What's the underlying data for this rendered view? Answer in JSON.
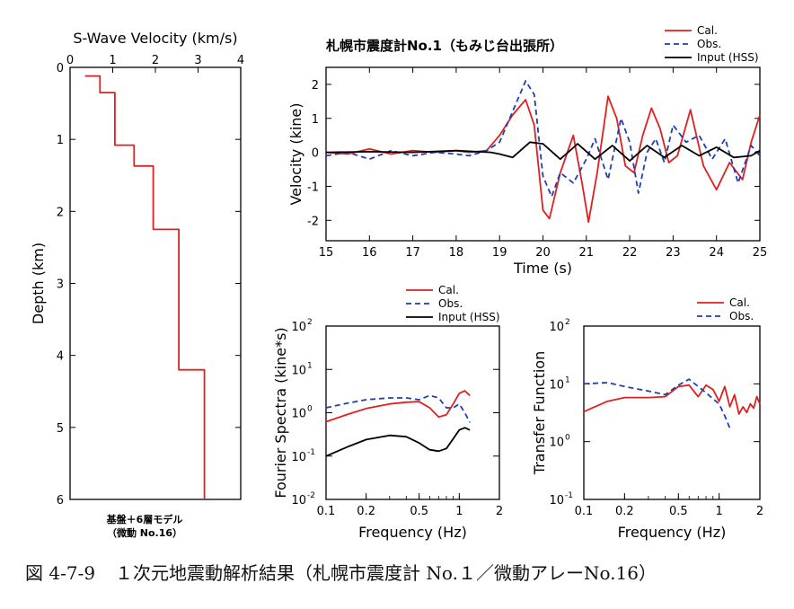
{
  "caption": {
    "number": "図 4-7-9",
    "text": "１次元地震動解析結果（札幌市震度計 No.１／微動アレーNo.16）"
  },
  "chart_data": [
    {
      "id": "vs",
      "type": "line",
      "title": "S-Wave Velocity (km/s)",
      "ylabel": "Depth (km)",
      "xlim": [
        0,
        4
      ],
      "ylim": [
        0,
        6
      ],
      "x_ticks": [
        "0",
        "1",
        "2",
        "3",
        "4"
      ],
      "y_ticks": [
        "0",
        "1",
        "2",
        "3",
        "4",
        "5",
        "6"
      ],
      "note_line1": "基盤＋6層モデル",
      "note_line2": "（微動 No.16）",
      "color": "#e02020",
      "series": [
        {
          "x": [
            0.35,
            0.7,
            0.7,
            1.05,
            1.05,
            1.5,
            1.5,
            1.95,
            1.95,
            2.55,
            2.55,
            3.15,
            3.15
          ],
          "y": [
            0.12,
            0.12,
            0.35,
            0.35,
            1.08,
            1.08,
            1.37,
            1.37,
            2.25,
            2.25,
            4.2,
            4.2,
            6.0
          ]
        }
      ]
    },
    {
      "id": "velocity",
      "type": "line",
      "title": "札幌市震度計No.1（もみじ台出張所）",
      "xlabel": "Time (s)",
      "ylabel": "Velocity (kine)",
      "xlim": [
        15,
        25
      ],
      "ylim": [
        -2.6,
        2.5
      ],
      "x_ticks": [
        "15",
        "16",
        "17",
        "18",
        "19",
        "20",
        "21",
        "22",
        "23",
        "24",
        "25"
      ],
      "y_ticks": [
        "2",
        "1",
        "0",
        "-1",
        "-2"
      ],
      "legend": "top-right",
      "series": [
        {
          "name": "Cal.",
          "color": "#e02020",
          "dash": "solid",
          "x": [
            15,
            15.5,
            16,
            16.5,
            17,
            17.5,
            18,
            18.3,
            18.7,
            19,
            19.3,
            19.6,
            19.8,
            20,
            20.15,
            20.4,
            20.7,
            20.9,
            21.05,
            21.25,
            21.5,
            21.7,
            21.9,
            22.1,
            22.3,
            22.5,
            22.7,
            22.9,
            23.1,
            23.4,
            23.7,
            24,
            24.3,
            24.6,
            24.8,
            25
          ],
          "y": [
            0,
            -0.05,
            0.1,
            -0.05,
            0.05,
            0,
            0.05,
            0,
            0.05,
            0.5,
            1.1,
            1.55,
            0.8,
            -1.7,
            -1.95,
            -0.6,
            0.5,
            -0.9,
            -2.05,
            -0.6,
            1.65,
            1.0,
            -0.4,
            -0.6,
            0.5,
            1.3,
            0.7,
            -0.3,
            -0.1,
            1.25,
            -0.4,
            -1.1,
            -0.3,
            -0.8,
            0.3,
            1.1
          ]
        },
        {
          "name": "Obs.",
          "color": "#1f3fb0",
          "dash": "dashed",
          "x": [
            15,
            15.5,
            16,
            16.5,
            17,
            17.5,
            18,
            18.3,
            18.7,
            19,
            19.3,
            19.6,
            19.8,
            20,
            20.2,
            20.4,
            20.7,
            21,
            21.2,
            21.5,
            21.8,
            22,
            22.2,
            22.4,
            22.6,
            22.8,
            23,
            23.3,
            23.6,
            23.9,
            24.2,
            24.5,
            24.8,
            25
          ],
          "y": [
            -0.1,
            0,
            -0.2,
            0.05,
            -0.1,
            0,
            -0.05,
            -0.1,
            0.05,
            0.3,
            1.2,
            2.1,
            1.7,
            -0.7,
            -1.3,
            -0.6,
            -0.9,
            -0.2,
            0.4,
            -0.8,
            1.0,
            0.3,
            -1.2,
            0,
            0.4,
            -0.3,
            0.8,
            0.3,
            0.5,
            -0.2,
            0.4,
            -0.9,
            0.2,
            -0.1
          ]
        },
        {
          "name": "Input (HSS)",
          "color": "#000000",
          "dash": "solid",
          "x": [
            15,
            16,
            17,
            18,
            18.8,
            19,
            19.3,
            19.7,
            20,
            20.4,
            20.8,
            21.2,
            21.6,
            22,
            22.4,
            22.8,
            23.2,
            23.6,
            24,
            24.4,
            24.8,
            25
          ],
          "y": [
            0,
            0.02,
            0,
            0.05,
            0,
            -0.05,
            -0.15,
            0.3,
            0.25,
            -0.2,
            0.25,
            -0.2,
            0.2,
            -0.25,
            0.2,
            -0.15,
            0.2,
            -0.1,
            0.15,
            -0.15,
            -0.1,
            0.05
          ]
        }
      ]
    },
    {
      "id": "fourier",
      "type": "line",
      "xlabel": "Frequency (Hz)",
      "ylabel": "Fourier Spectra (kine*s)",
      "x_scale": "log",
      "y_scale": "log",
      "xlim": [
        0.1,
        2
      ],
      "ylim": [
        0.01,
        100
      ],
      "x_ticks": [
        "0.1",
        "0.2",
        "0.5",
        "1",
        "2"
      ],
      "y_ticks_base": "10",
      "y_ticks_exp": [
        "2",
        "1",
        "0",
        "-1",
        "-2"
      ],
      "legend": "top",
      "series": [
        {
          "name": "Cal.",
          "color": "#e02020",
          "dash": "solid",
          "x": [
            0.1,
            0.15,
            0.2,
            0.3,
            0.4,
            0.5,
            0.6,
            0.7,
            0.8,
            0.9,
            1.0,
            1.1,
            1.2
          ],
          "y": [
            0.62,
            0.95,
            1.25,
            1.6,
            1.75,
            1.8,
            1.3,
            0.8,
            0.9,
            1.6,
            2.8,
            3.2,
            2.5
          ]
        },
        {
          "name": "Obs.",
          "color": "#1f3fb0",
          "dash": "dashed",
          "x": [
            0.1,
            0.15,
            0.2,
            0.3,
            0.4,
            0.5,
            0.6,
            0.7,
            0.8,
            0.9,
            1.0,
            1.1,
            1.2
          ],
          "y": [
            1.3,
            1.7,
            2.0,
            2.2,
            2.2,
            2.0,
            2.5,
            2.2,
            1.3,
            1.3,
            1.6,
            1.0,
            0.6
          ]
        },
        {
          "name": "Input (HSS)",
          "color": "#000000",
          "dash": "solid",
          "x": [
            0.1,
            0.15,
            0.2,
            0.3,
            0.4,
            0.5,
            0.6,
            0.7,
            0.8,
            0.9,
            1.0,
            1.1,
            1.2
          ],
          "y": [
            0.1,
            0.17,
            0.24,
            0.3,
            0.28,
            0.2,
            0.14,
            0.13,
            0.15,
            0.25,
            0.4,
            0.45,
            0.4
          ]
        }
      ]
    },
    {
      "id": "transfer",
      "type": "line",
      "xlabel": "Frequency (Hz)",
      "ylabel": "Transfer Function",
      "x_scale": "log",
      "y_scale": "log",
      "xlim": [
        0.1,
        2
      ],
      "ylim": [
        0.1,
        100
      ],
      "x_ticks": [
        "0.1",
        "0.2",
        "0.5",
        "1",
        "2"
      ],
      "y_ticks_base": "10",
      "y_ticks_exp": [
        "2",
        "1",
        "0",
        "-1"
      ],
      "legend": "top-right",
      "series": [
        {
          "name": "Cal.",
          "color": "#e02020",
          "dash": "solid",
          "x": [
            0.1,
            0.15,
            0.2,
            0.3,
            0.4,
            0.5,
            0.6,
            0.7,
            0.8,
            0.9,
            1.0,
            1.1,
            1.2,
            1.3,
            1.4,
            1.5,
            1.6,
            1.7,
            1.8,
            1.9,
            2.0
          ],
          "y": [
            3.3,
            5.0,
            5.8,
            5.8,
            6.0,
            9.0,
            9.5,
            6.0,
            9.5,
            8.0,
            5.0,
            9.0,
            4.0,
            6.5,
            3.0,
            4.0,
            3.2,
            4.5,
            3.8,
            6.0,
            4.5
          ]
        },
        {
          "name": "Obs.",
          "color": "#1f3fb0",
          "dash": "dashed",
          "x": [
            0.1,
            0.15,
            0.2,
            0.3,
            0.4,
            0.5,
            0.6,
            0.7,
            0.8,
            0.9,
            1.0,
            1.1,
            1.2
          ],
          "y": [
            10,
            10.5,
            9.0,
            7.5,
            6.5,
            9.5,
            12,
            9.0,
            7.0,
            5.5,
            4.5,
            2.8,
            1.7
          ]
        }
      ]
    }
  ]
}
